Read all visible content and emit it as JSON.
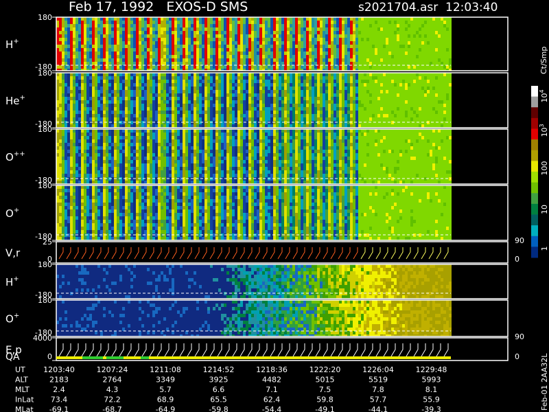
{
  "header": {
    "title_left": "Feb 17, 1992   EXOS-D SMS",
    "title_right": "s2021704.asr  12:03:40"
  },
  "panels": [
    {
      "label": "H",
      "sup": "+",
      "left_ticks": [
        "180",
        "-180"
      ],
      "right_ticks": []
    },
    {
      "label": "He",
      "sup": "+",
      "left_ticks": [
        "180",
        "-180"
      ],
      "right_ticks": []
    },
    {
      "label": "O",
      "sup": "++",
      "left_ticks": [
        "180",
        "-180"
      ],
      "right_ticks": []
    },
    {
      "label": "O",
      "sup": "+",
      "left_ticks": [
        "180",
        "-180"
      ],
      "right_ticks": []
    },
    {
      "label": "V,r",
      "sup": "",
      "left_ticks": [
        "25",
        "0"
      ],
      "right_ticks": [
        "90",
        "0"
      ]
    },
    {
      "label": "H",
      "sup": "+",
      "left_ticks": [
        "180",
        "-180"
      ],
      "right_ticks": []
    },
    {
      "label": "O",
      "sup": "+",
      "left_ticks": [
        "180",
        "-180"
      ],
      "right_ticks": []
    },
    {
      "label": "E,p",
      "sup": "",
      "left_ticks": [
        "4000",
        "0"
      ],
      "right_ticks": [
        "90",
        "0"
      ]
    }
  ],
  "qa_label": "QA",
  "colorbar": {
    "unit": "Ct/Smp",
    "labels": [
      {
        "base": "10",
        "sup": "4"
      },
      {
        "base": "10",
        "sup": "3"
      },
      {
        "base": "100",
        "sup": ""
      },
      {
        "base": "10",
        "sup": ""
      },
      {
        "base": "1",
        "sup": ""
      }
    ]
  },
  "side_note": "Feb-01 2AA32L",
  "table": {
    "rows": [
      {
        "label": "UT",
        "values": [
          "1203:40",
          "1207:24",
          "1211:08",
          "1214:52",
          "1218:36",
          "1222:20",
          "1226:04",
          "1229:48"
        ]
      },
      {
        "label": "ALT",
        "values": [
          "2183",
          "2764",
          "3349",
          "3925",
          "4482",
          "5015",
          "5519",
          "5993"
        ]
      },
      {
        "label": "MLT",
        "values": [
          "2.4",
          "4.3",
          "5.7",
          "6.6",
          "7.1",
          "7.5",
          "7.8",
          "8.1"
        ]
      },
      {
        "label": "InLat",
        "values": [
          "73.4",
          "72.2",
          "68.9",
          "65.5",
          "62.4",
          "59.8",
          "57.7",
          "55.9"
        ]
      },
      {
        "label": "MLat",
        "values": [
          "-69.1",
          "-68.7",
          "-64.9",
          "-59.8",
          "-54.4",
          "-49.1",
          "-44.1",
          "-39.3"
        ]
      }
    ]
  }
}
